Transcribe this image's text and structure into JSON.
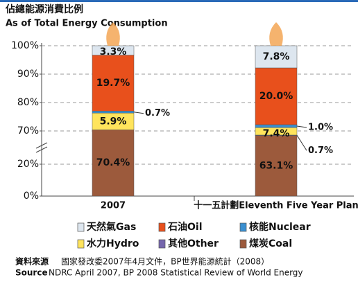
{
  "chart_data": {
    "type": "stacked_bar",
    "title": "佔總能源消費比例",
    "subtitle": "As of Total Energy Consumption",
    "categories": [
      "2007",
      "十一五計劃Eleventh Five Year Plan"
    ],
    "series": [
      {
        "name": "煤炭Coal",
        "color": "#9c5a3c",
        "values": [
          70.4,
          63.1
        ],
        "value_labels": [
          "70.4%",
          "63.1%"
        ]
      },
      {
        "name": "其他Other",
        "color": "#7566ad",
        "values": [
          null,
          0.7
        ],
        "value_labels": [
          null,
          "0.7%"
        ]
      },
      {
        "name": "水力Hydro",
        "color": "#ffe45c",
        "values": [
          5.9,
          7.4
        ],
        "value_labels": [
          "5.9%",
          "7.4%"
        ]
      },
      {
        "name": "核能Nuclear",
        "color": "#3a8fd0",
        "values": [
          0.7,
          1.0
        ],
        "value_labels": [
          "0.7%",
          "1.0%"
        ]
      },
      {
        "name": "石油Oil",
        "color": "#e8501c",
        "values": [
          19.7,
          20.0
        ],
        "value_labels": [
          "19.7%",
          "20.0%"
        ]
      },
      {
        "name": "天然氣Gas",
        "color": "#dde6ef",
        "values": [
          3.3,
          7.8
        ],
        "value_labels": [
          "3.3%",
          "7.8%"
        ]
      }
    ],
    "ylim": [
      0,
      100
    ],
    "y_break": [
      20,
      70
    ],
    "yticks": [
      {
        "value": 0,
        "label": "0%"
      },
      {
        "value": 20,
        "label": "20%"
      },
      {
        "value": 70,
        "label": "70%"
      },
      {
        "value": 80,
        "label": "80%"
      },
      {
        "value": 90,
        "label": "90%"
      },
      {
        "value": 100,
        "label": "100%"
      }
    ],
    "grid": true,
    "source": {
      "label_zh": "資料來源",
      "text_zh": "國家發改委2007年4月文件，BP世界能源統計（2008）",
      "label_en": "Source",
      "text_en": "NDRC April 2007, BP 2008 Statistical Review of World Energy"
    }
  }
}
